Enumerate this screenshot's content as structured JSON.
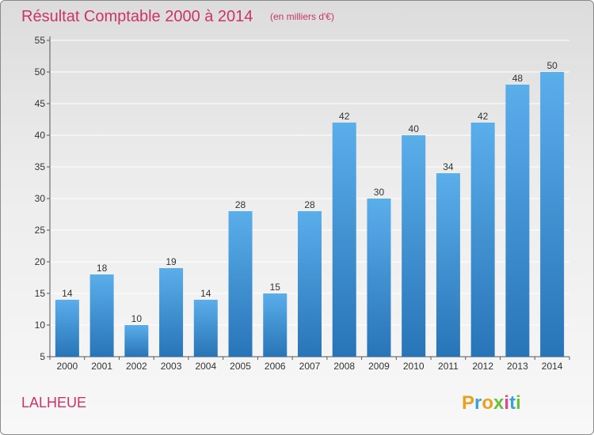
{
  "chart_data": {
    "type": "bar",
    "title": "Résultat Comptable 2000 à 2014",
    "subtitle": "(en milliers d'€)",
    "xlabel": "",
    "ylabel": "",
    "categories": [
      "2000",
      "2001",
      "2002",
      "2003",
      "2004",
      "2005",
      "2006",
      "2007",
      "2008",
      "2009",
      "2010",
      "2011",
      "2012",
      "2013",
      "2014"
    ],
    "values": [
      14,
      18,
      10,
      19,
      14,
      28,
      15,
      28,
      42,
      30,
      40,
      34,
      42,
      48,
      50
    ],
    "ylim": [
      5,
      55
    ],
    "yticks": [
      5,
      10,
      15,
      20,
      25,
      30,
      35,
      40,
      45,
      50,
      55
    ],
    "grid": true,
    "bar_color": "#3a8fd4"
  },
  "footer": {
    "commune": "LALHEUE",
    "logo_letters": [
      "P",
      "r",
      "o",
      "x",
      "i",
      "t",
      "i"
    ],
    "logo_colors": [
      "#e8a020",
      "#3aa0d8",
      "#e8a020",
      "#6cbf3c",
      "#d84a8a",
      "#3aa0d8",
      "#6cbf3c"
    ]
  }
}
